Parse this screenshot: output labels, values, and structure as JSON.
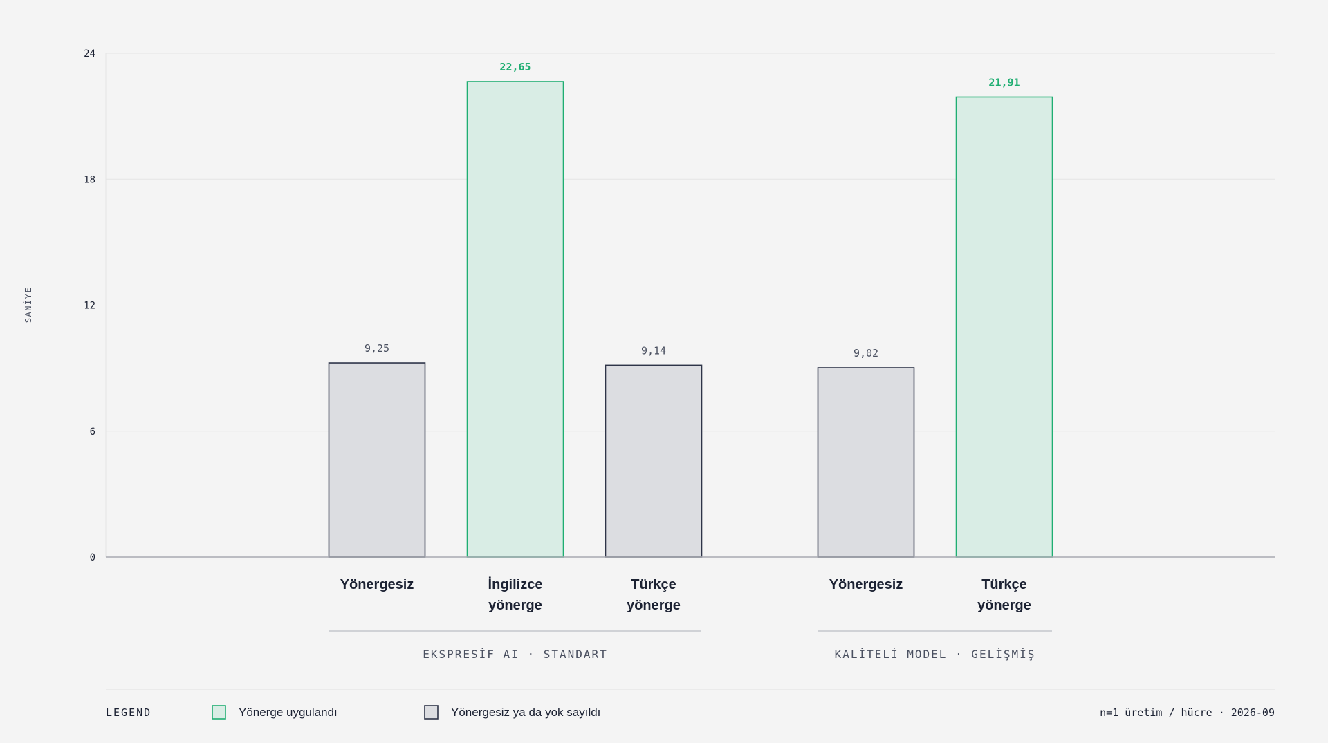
{
  "colors": {
    "background": "#f4f4f4",
    "grid": "#e4e4e4",
    "axis": "#a8aab2",
    "text_dark": "#1c2233",
    "text_muted": "#4a5060",
    "accent_green": "#1fae72",
    "green_fill": "#d9ede5",
    "gray_fill": "#dcdde1",
    "gray_stroke": "#2e3448",
    "group_line": "#c4c6cc"
  },
  "chart_data": {
    "type": "bar",
    "ylabel": "SANİYE",
    "ylim": [
      0,
      24
    ],
    "yticks": [
      "0",
      "6",
      "12",
      "18",
      "24"
    ],
    "grid": true,
    "groups": [
      {
        "label": "EKSPRESİF AI · STANDART",
        "bars": [
          {
            "category": [
              "Yönergesiz"
            ],
            "value": 9.25,
            "value_label": "9,25",
            "series": "Yönergesiz ya da yok sayıldı"
          },
          {
            "category": [
              "İngilizce",
              "yönerge"
            ],
            "value": 22.65,
            "value_label": "22,65",
            "series": "Yönerge uygulandı"
          },
          {
            "category": [
              "Türkçe",
              "yönerge"
            ],
            "value": 9.14,
            "value_label": "9,14",
            "series": "Yönergesiz ya da yok sayıldı"
          }
        ]
      },
      {
        "label": "KALİTELİ MODEL · GELİŞMİŞ",
        "bars": [
          {
            "category": [
              "Yönergesiz"
            ],
            "value": 9.02,
            "value_label": "9,02",
            "series": "Yönergesiz ya da yok sayıldı"
          },
          {
            "category": [
              "Türkçe",
              "yönerge"
            ],
            "value": 21.91,
            "value_label": "21,91",
            "series": "Yönerge uygulandı"
          }
        ]
      }
    ],
    "legend": {
      "title": "LEGEND",
      "placement": "bottom-left",
      "items": [
        {
          "name": "Yönerge uygulandı",
          "kind": "applied"
        },
        {
          "name": "Yönergesiz ya da yok sayıldı",
          "kind": "none"
        }
      ]
    }
  },
  "footer": {
    "note": "n=1 üretim / hücre · 2026-09"
  }
}
